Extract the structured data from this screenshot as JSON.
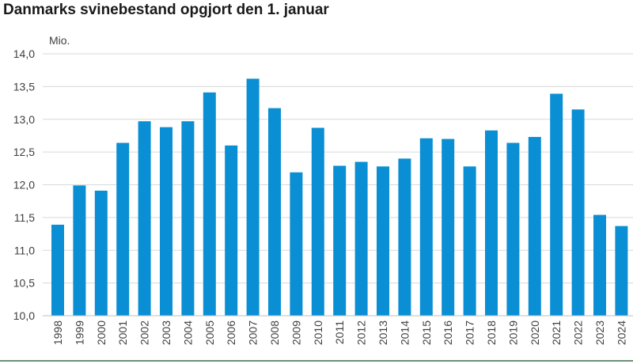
{
  "title": "Danmarks svinebestand opgjort den 1. januar",
  "chart_data": {
    "type": "bar",
    "title": "Danmarks svinebestand opgjort den 1. januar",
    "unit_label": "Mio.",
    "categories": [
      "1998",
      "1999",
      "2000",
      "2001",
      "2002",
      "2003",
      "2004",
      "2005",
      "2006",
      "2007",
      "2008",
      "2009",
      "2010",
      "2011",
      "2012",
      "2013",
      "2014",
      "2015",
      "2016",
      "2017",
      "2018",
      "2019",
      "2020",
      "2021",
      "2022",
      "2023",
      "2024"
    ],
    "values": [
      11.39,
      11.99,
      11.91,
      12.64,
      12.97,
      12.88,
      12.97,
      13.41,
      12.6,
      13.62,
      13.17,
      12.19,
      12.87,
      12.29,
      12.35,
      12.28,
      12.4,
      12.71,
      12.7,
      12.28,
      12.83,
      12.64,
      12.73,
      13.39,
      13.15,
      11.54,
      11.37
    ],
    "ylim": [
      10.0,
      14.0
    ],
    "y_ticks": [
      "10,0",
      "10,5",
      "11,0",
      "11,5",
      "12,0",
      "12,5",
      "13,0",
      "13,5",
      "14,0"
    ],
    "grid": true,
    "bar_color": "#0a8fd4",
    "legend": "none"
  }
}
